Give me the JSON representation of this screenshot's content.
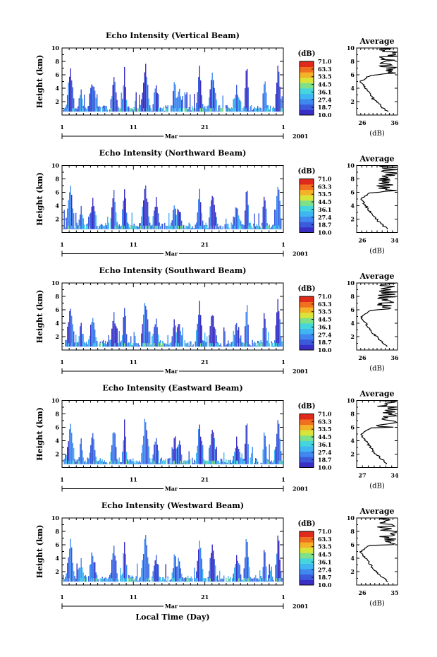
{
  "figure": {
    "xlabel": "Local Time (Day)"
  },
  "colorbar": {
    "unit": "(dB)",
    "ticks": [
      "71.0",
      "63.3",
      "53.5",
      "44.5",
      "36.1",
      "27.4",
      "18.7",
      "10.0"
    ],
    "colors": [
      "#3a2fc4",
      "#3b5bdc",
      "#3f88f0",
      "#3fb6f2",
      "#45d6dd",
      "#7fe08a",
      "#d8e43a",
      "#f4b229",
      "#f07020",
      "#e02a1c"
    ]
  },
  "chart_data": [
    {
      "type": "heatmap",
      "title": "Echo Intensity (Vertical Beam)",
      "ylabel": "Height (km)",
      "y_ticks": [
        "10",
        "8",
        "6",
        "4",
        "2"
      ],
      "x_ticks": [
        "1",
        "11",
        "21",
        "1"
      ],
      "month_label": "Mar",
      "year_label": "2001",
      "ylim": [
        0,
        10
      ],
      "colorbar_range_db": [
        10.0,
        71.0
      ],
      "average_profile": {
        "title": "Average",
        "xlabel": "(dB)",
        "xlim": [
          26,
          36
        ],
        "x_ticks": [
          "26",
          "36"
        ],
        "y_ticks": [
          "10",
          "8",
          "6",
          "4",
          "2"
        ]
      }
    },
    {
      "type": "heatmap",
      "title": "Echo Intensity (Northward Beam)",
      "ylabel": "Height (km)",
      "y_ticks": [
        "10",
        "8",
        "6",
        "4",
        "2"
      ],
      "x_ticks": [
        "1",
        "11",
        "21",
        "1"
      ],
      "month_label": "Mar",
      "year_label": "2001",
      "ylim": [
        0,
        10
      ],
      "colorbar_range_db": [
        10.0,
        71.0
      ],
      "average_profile": {
        "title": "Average",
        "xlabel": "(dB)",
        "xlim": [
          26,
          34
        ],
        "x_ticks": [
          "26",
          "34"
        ],
        "y_ticks": [
          "10",
          "8",
          "6",
          "4",
          "2"
        ]
      }
    },
    {
      "type": "heatmap",
      "title": "Echo Intensity (Southward Beam)",
      "ylabel": "Height (km)",
      "y_ticks": [
        "10",
        "8",
        "6",
        "4",
        "2"
      ],
      "x_ticks": [
        "1",
        "11",
        "21",
        "1"
      ],
      "month_label": "Mar",
      "year_label": "2001",
      "ylim": [
        0,
        10
      ],
      "colorbar_range_db": [
        10.0,
        71.0
      ],
      "average_profile": {
        "title": "Average",
        "xlabel": "(dB)",
        "xlim": [
          26,
          36
        ],
        "x_ticks": [
          "26",
          "36"
        ],
        "y_ticks": [
          "10",
          "8",
          "6",
          "4",
          "2"
        ]
      }
    },
    {
      "type": "heatmap",
      "title": "Echo Intensity (Eastward Beam)",
      "ylabel": "Height (km)",
      "y_ticks": [
        "10",
        "8",
        "6",
        "4",
        "2"
      ],
      "x_ticks": [
        "1",
        "11",
        "21",
        "1"
      ],
      "month_label": "Mar",
      "year_label": "2001",
      "ylim": [
        0,
        10
      ],
      "colorbar_range_db": [
        10.0,
        71.0
      ],
      "average_profile": {
        "title": "Average",
        "xlabel": "(dB)",
        "xlim": [
          27,
          34
        ],
        "x_ticks": [
          "27",
          "34"
        ],
        "y_ticks": [
          "10",
          "8",
          "6",
          "4",
          "2"
        ]
      }
    },
    {
      "type": "heatmap",
      "title": "Echo Intensity (Westward Beam)",
      "ylabel": "Height (km)",
      "y_ticks": [
        "10",
        "8",
        "6",
        "4",
        "2"
      ],
      "x_ticks": [
        "1",
        "11",
        "21",
        "1"
      ],
      "month_label": "Mar",
      "year_label": "2001",
      "ylim": [
        0,
        10
      ],
      "colorbar_range_db": [
        10.0,
        71.0
      ],
      "average_profile": {
        "title": "Average",
        "xlabel": "(dB)",
        "xlim": [
          26,
          35
        ],
        "x_ticks": [
          "26",
          "35"
        ],
        "y_ticks": [
          "10",
          "8",
          "6",
          "4",
          "2"
        ]
      }
    }
  ]
}
